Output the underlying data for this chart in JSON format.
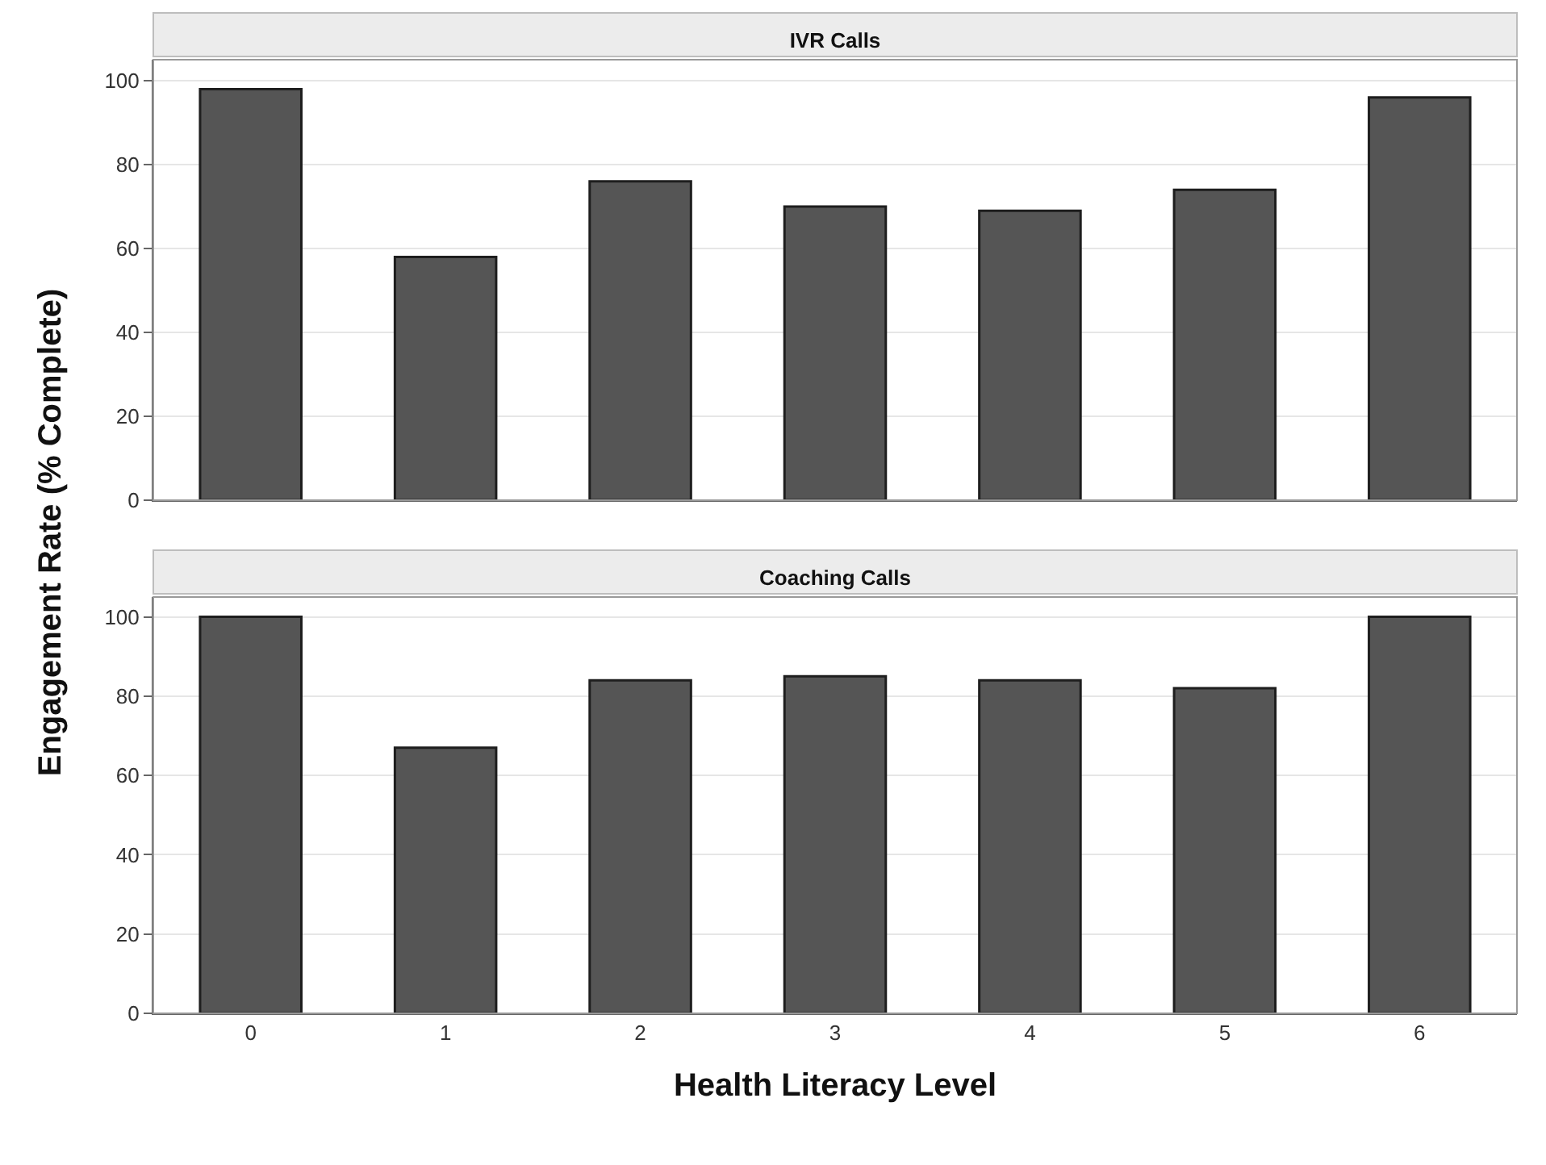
{
  "chart_data": [
    {
      "type": "bar",
      "title": "IVR Calls",
      "ylabel": "Engagement Rate (% Complete)",
      "categories": [
        "0",
        "1",
        "2",
        "3",
        "4",
        "5",
        "6"
      ],
      "values": [
        98,
        58,
        76,
        70,
        69,
        74,
        96
      ],
      "color": "#555555",
      "ylim": [
        0,
        105
      ],
      "yticks": [
        0,
        20,
        40,
        60,
        80,
        100
      ],
      "grid": "y",
      "tick_labels": "y"
    },
    {
      "type": "bar",
      "title": "Coaching Calls",
      "xlabel": "Health Literacy Level",
      "categories": [
        "0",
        "1",
        "2",
        "3",
        "4",
        "5",
        "6"
      ],
      "values": [
        100,
        67,
        84,
        85,
        84,
        82,
        100
      ],
      "color": "#555555",
      "ylim": [
        0,
        105
      ],
      "yticks": [
        0,
        20,
        40,
        60,
        80,
        100
      ],
      "grid": "y"
    }
  ]
}
